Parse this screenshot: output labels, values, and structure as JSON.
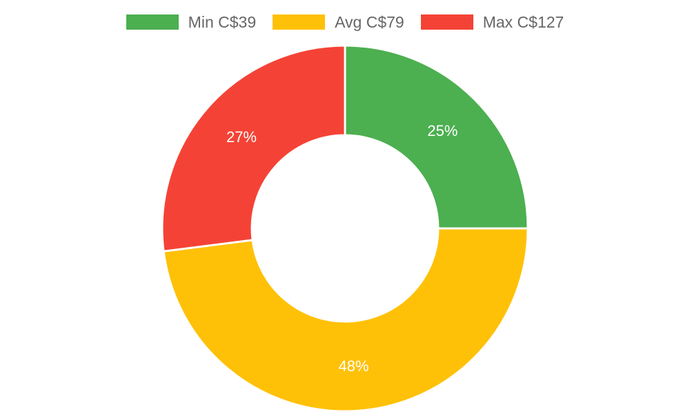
{
  "chart_data": {
    "type": "pie",
    "variant": "doughnut",
    "categories": [
      "Min C$39",
      "Avg C$79",
      "Max C$127"
    ],
    "values": [
      25,
      48,
      27
    ],
    "value_labels": [
      "25%",
      "48%",
      "27%"
    ],
    "colors": [
      "#4caf50",
      "#ffc107",
      "#f44336"
    ],
    "legend_position": "top"
  }
}
